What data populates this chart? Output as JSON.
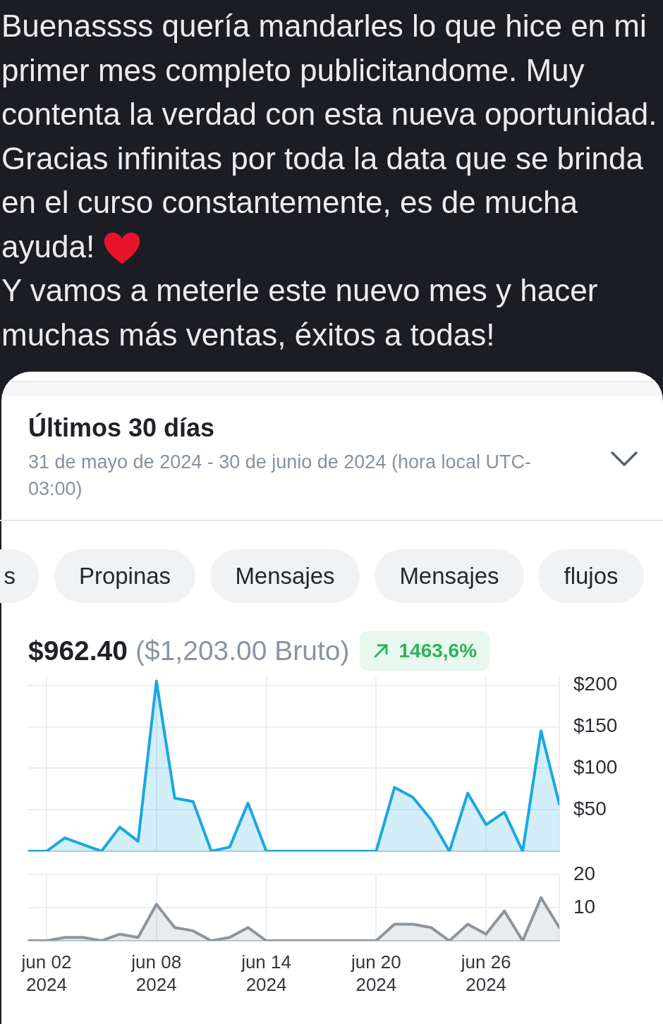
{
  "chart_data": [
    {
      "type": "area",
      "title": "Últimos 30 días",
      "subtitle": "31 de mayo de 2024 - 30 de junio de 2024 (hora local UTC-03:00)",
      "annotations": [
        "Buenassss quería mandarles lo que hice en mi primer mes completo publicitandome. Muy contenta la verdad con esta nueva oportunidad. Gracias infinitas por toda la data que se brinda en el curso constantemente, es de mucha ayuda!",
        "Y vamos a meterle este nuevo mes y hacer muchas más ventas, éxitos a todas!",
        "s",
        "Propinas",
        "Mensajes",
        "Mensajes",
        "flujos",
        "$962.40",
        "($1,203.00 Bruto)",
        "1463,6%"
      ],
      "x": [
        "2024-06-01",
        "2024-06-02",
        "2024-06-03",
        "2024-06-04",
        "2024-06-05",
        "2024-06-06",
        "2024-06-07",
        "2024-06-08",
        "2024-06-09",
        "2024-06-10",
        "2024-06-11",
        "2024-06-12",
        "2024-06-13",
        "2024-06-14",
        "2024-06-15",
        "2024-06-16",
        "2024-06-17",
        "2024-06-18",
        "2024-06-19",
        "2024-06-20",
        "2024-06-21",
        "2024-06-22",
        "2024-06-23",
        "2024-06-24",
        "2024-06-25",
        "2024-06-26",
        "2024-06-27",
        "2024-06-28",
        "2024-06-29",
        "2024-06-30"
      ],
      "values": [
        0,
        0,
        16,
        8,
        0,
        29,
        12,
        205,
        64,
        60,
        0,
        5,
        58,
        0,
        0,
        0,
        0,
        0,
        0,
        0,
        77,
        65,
        38,
        0,
        70,
        32,
        47,
        0,
        145,
        57
      ],
      "color": "#1ba7e0",
      "xlim": [
        "2024-06-01",
        "2024-06-30"
      ],
      "xticks": [
        "2024-06-02",
        "2024-06-08",
        "2024-06-14",
        "2024-06-20",
        "2024-06-26",
        "2024-06-30"
      ],
      "ylim": [
        0,
        210
      ],
      "yticks": [
        {
          "value": 0,
          "label": null
        },
        {
          "value": 50,
          "label": "$50"
        },
        {
          "value": 100,
          "label": "$100"
        },
        {
          "value": 150,
          "label": "$150"
        },
        {
          "value": 200,
          "label": "$200"
        }
      ],
      "grid": true,
      "tick_labels": "y"
    },
    {
      "type": "area",
      "x": [
        "2024-06-01",
        "2024-06-02",
        "2024-06-03",
        "2024-06-04",
        "2024-06-05",
        "2024-06-06",
        "2024-06-07",
        "2024-06-08",
        "2024-06-09",
        "2024-06-10",
        "2024-06-11",
        "2024-06-12",
        "2024-06-13",
        "2024-06-14",
        "2024-06-15",
        "2024-06-16",
        "2024-06-17",
        "2024-06-18",
        "2024-06-19",
        "2024-06-20",
        "2024-06-21",
        "2024-06-22",
        "2024-06-23",
        "2024-06-24",
        "2024-06-25",
        "2024-06-26",
        "2024-06-27",
        "2024-06-28",
        "2024-06-29",
        "2024-06-30"
      ],
      "values": [
        0,
        0,
        1,
        1,
        0,
        2,
        1,
        11,
        4,
        3,
        0,
        1,
        4,
        0,
        0,
        0,
        0,
        0,
        0,
        0,
        5,
        5,
        4,
        0,
        5,
        2,
        9,
        0,
        13,
        4
      ],
      "color": "#8c959d",
      "xlim": [
        "2024-06-01",
        "2024-06-30"
      ],
      "xticks": [
        {
          "value": "2024-06-02",
          "label": "jun 02\n2024"
        },
        {
          "value": "2024-06-08",
          "label": "jun 08\n2024"
        },
        {
          "value": "2024-06-14",
          "label": "jun 14\n2024"
        },
        {
          "value": "2024-06-20",
          "label": "jun 20\n2024"
        },
        {
          "value": "2024-06-26",
          "label": "jun 26\n2024"
        },
        {
          "value": "2024-06-30",
          "label": null
        }
      ],
      "ylim": [
        0,
        20
      ],
      "yticks": [
        {
          "value": 0,
          "label": null
        },
        10,
        20
      ],
      "grid": true
    }
  ]
}
